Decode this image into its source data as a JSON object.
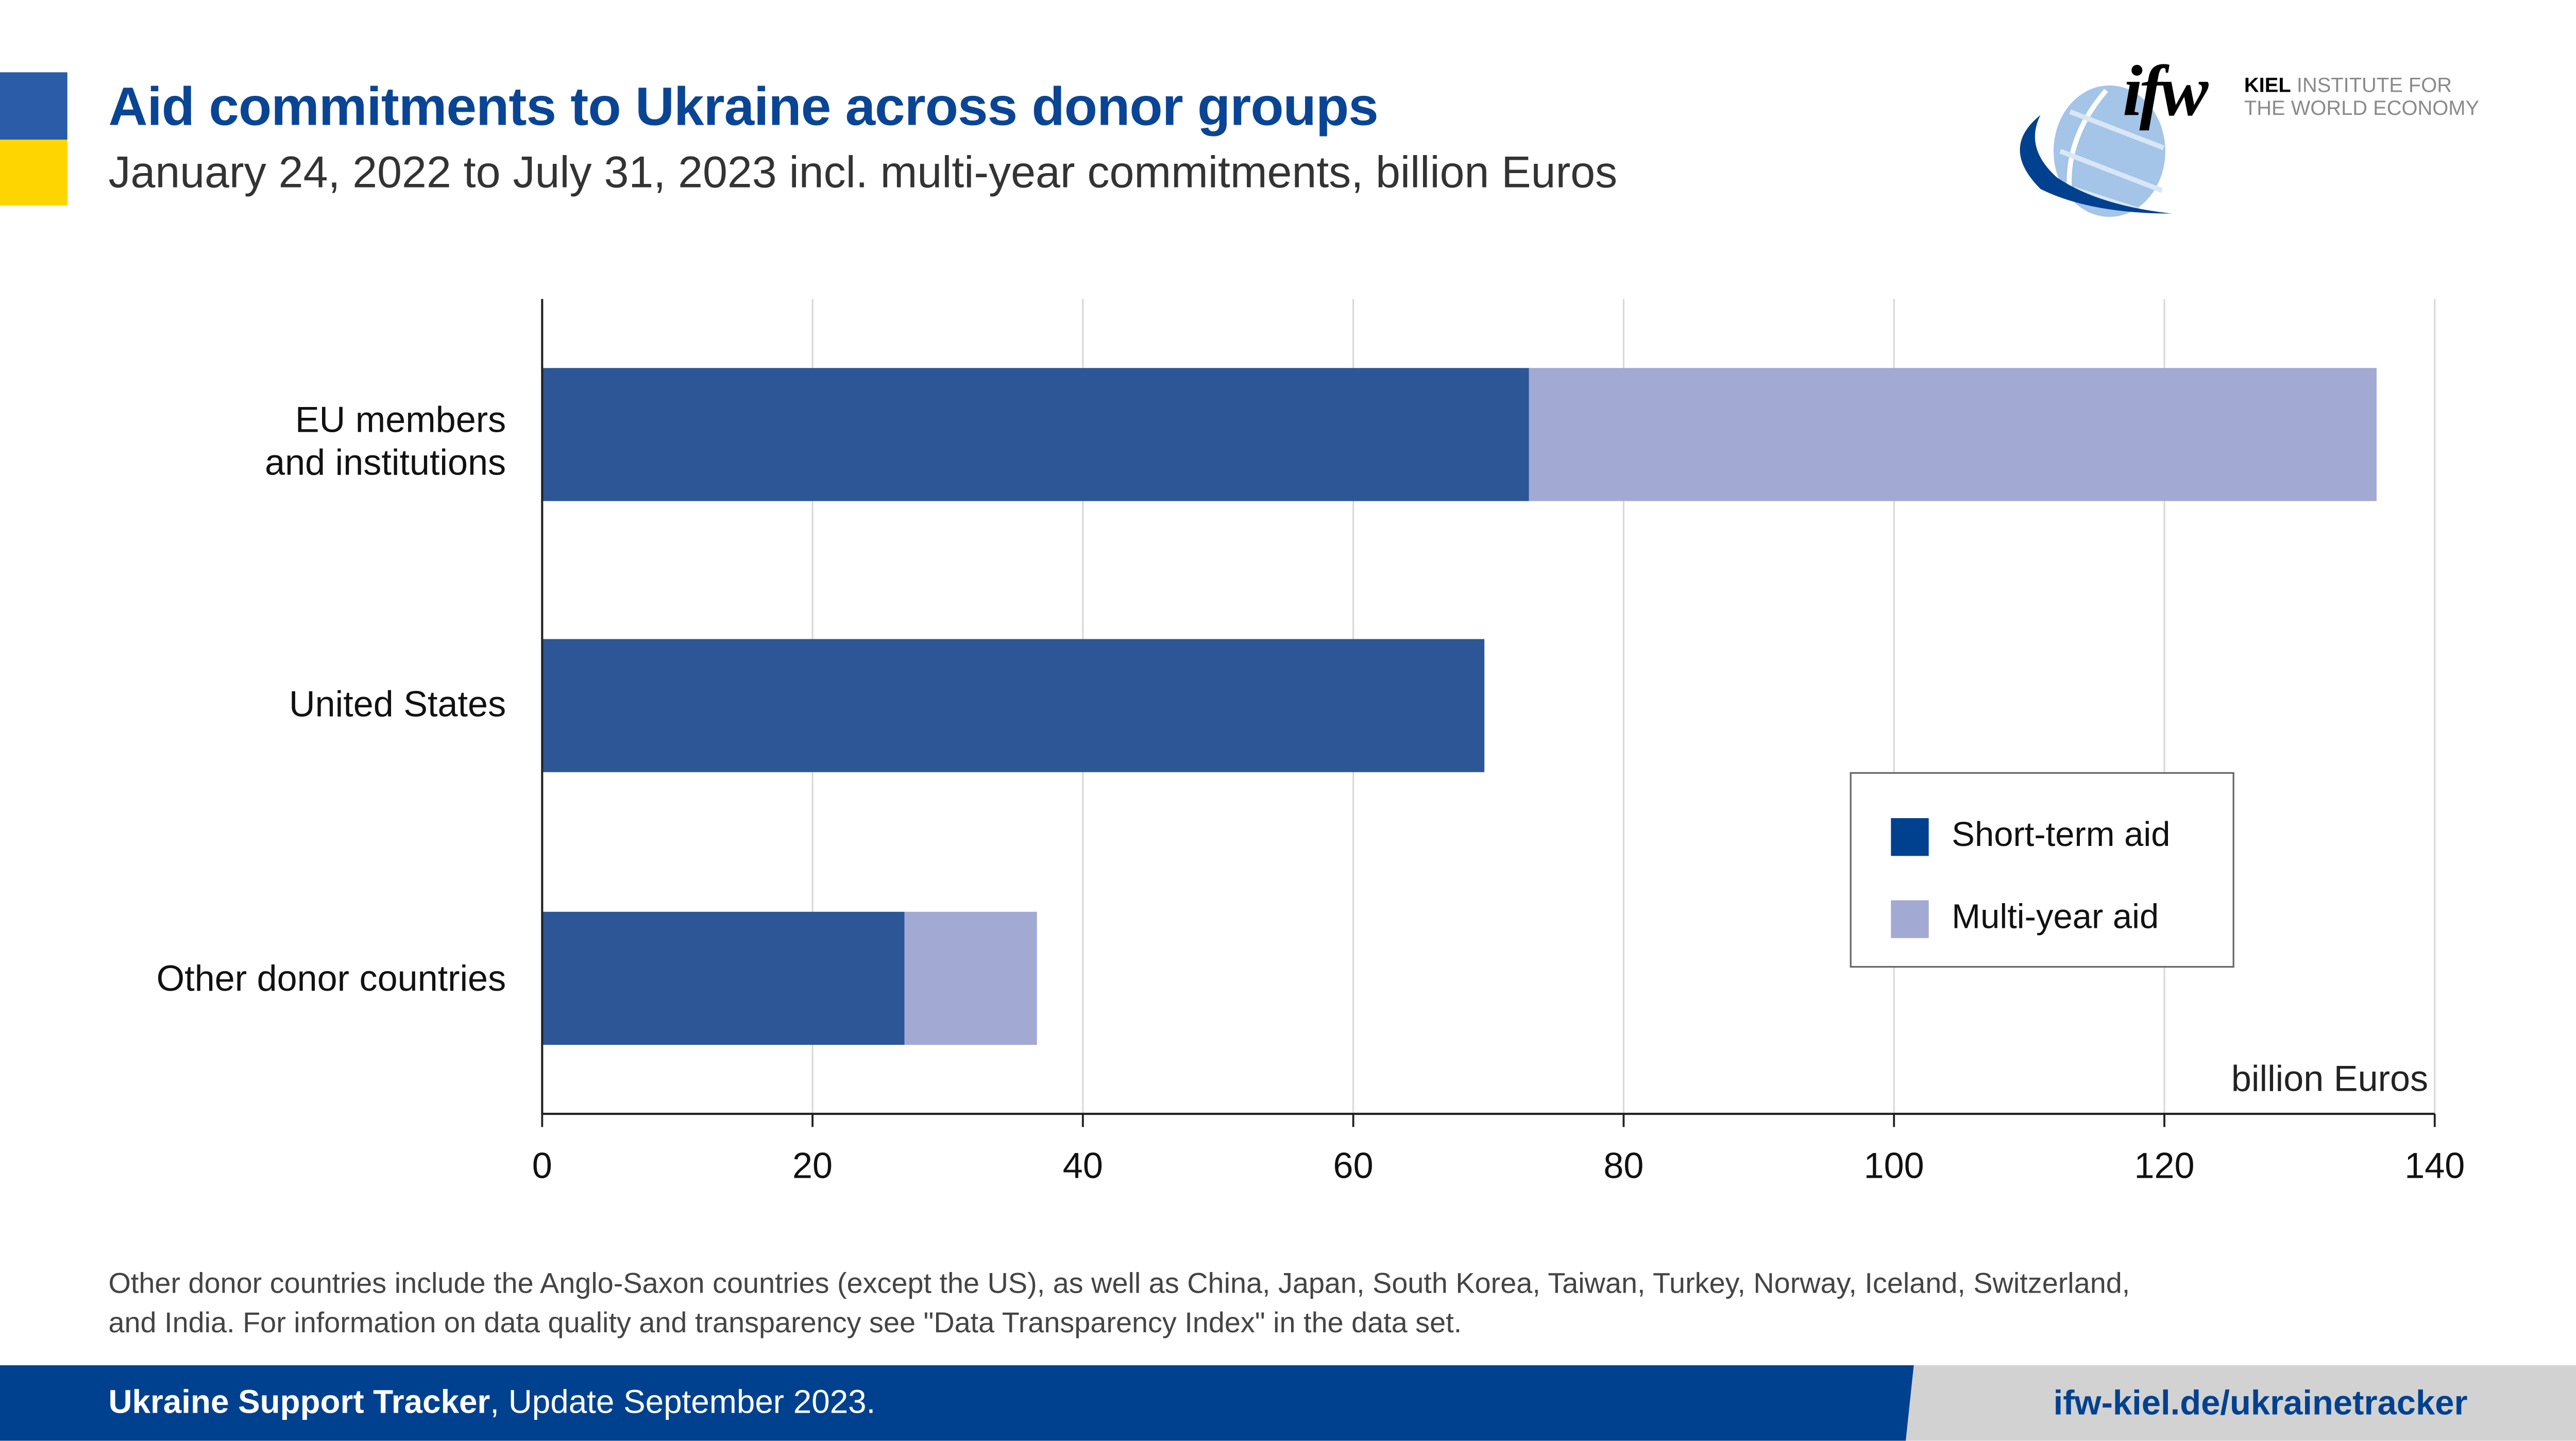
{
  "header": {
    "title": "Aid commitments to Ukraine across donor groups",
    "subtitle": "January 24, 2022 to July 31, 2023 incl. multi-year commitments, billion Euros",
    "flag_colors": {
      "top": "#2a5ca8",
      "bottom": "#ffd500"
    }
  },
  "logo": {
    "mark": "ifw",
    "line1_bold": "KIEL",
    "line1": "INSTITUTE FOR",
    "line2": "THE WORLD ECONOMY"
  },
  "chart_data": {
    "type": "bar",
    "orientation": "horizontal",
    "stacked": true,
    "categories": [
      "EU members and institutions",
      "United States",
      "Other donor countries"
    ],
    "category_lines": [
      [
        "EU members",
        "and institutions"
      ],
      [
        "United States"
      ],
      [
        "Other donor countries"
      ]
    ],
    "series": [
      {
        "name": "Short-term aid",
        "values": [
          73.0,
          69.7,
          26.8
        ],
        "color": "#2d5697",
        "legend_color": "#00418f"
      },
      {
        "name": "Multi-year aid",
        "values": [
          62.7,
          0,
          9.8
        ],
        "color": "#a2a9d3",
        "legend_color": "#a2a9d3"
      }
    ],
    "xlim": [
      0,
      140
    ],
    "xticks": [
      0,
      20,
      40,
      60,
      80,
      100,
      120,
      140
    ],
    "xlabel": "billion Euros",
    "grid": "vertical",
    "legend_position": "bottom-right"
  },
  "footnote": {
    "line1": "Other donor countries include the Anglo-Saxon countries (except the US), as well as China, Japan, South Korea, Taiwan, Turkey, Norway, Iceland, Switzerland,",
    "line2": "and India. For information on data quality and transparency see \"Data Transparency Index\" in the data set."
  },
  "footer": {
    "brand": "Ukraine Support Tracker",
    "update": ", Update September 2023.",
    "link": "ifw-kiel.de/ukrainetracker"
  }
}
